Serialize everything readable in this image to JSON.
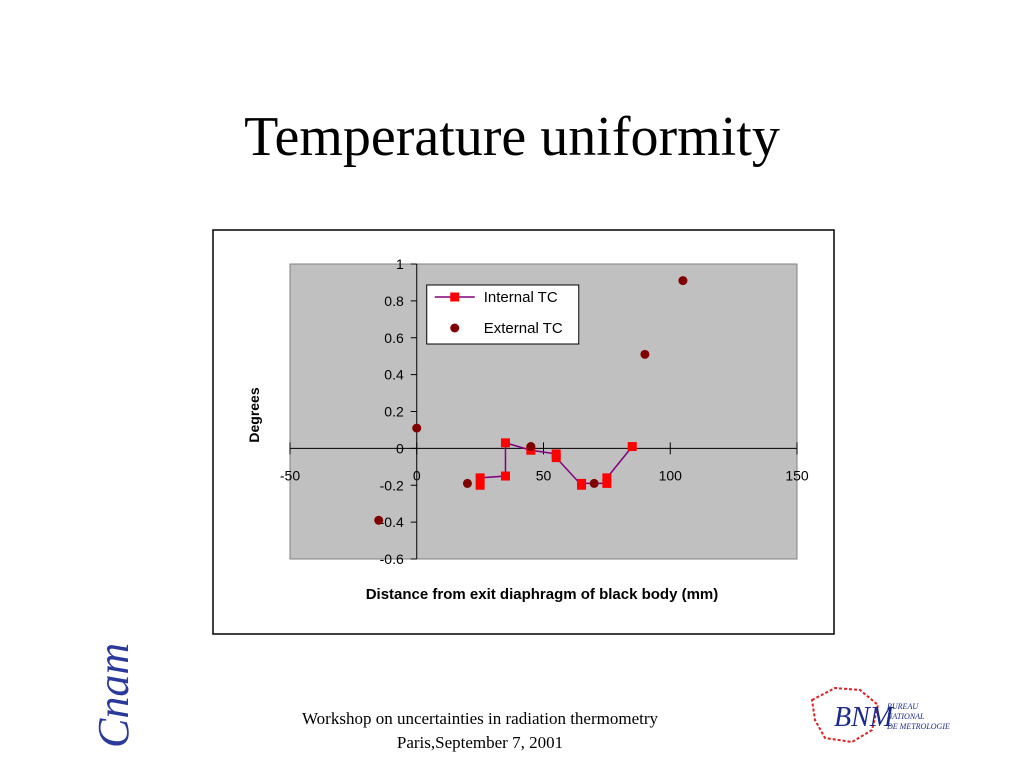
{
  "title": "Temperature uniformity",
  "chart_data": {
    "type": "scatter",
    "x_label": "Distance from exit diaphragm of black body (mm)",
    "y_label": "Degrees",
    "xlim": [
      -50,
      150
    ],
    "xticks": [
      -50,
      0,
      50,
      100,
      150
    ],
    "ylim": [
      -0.6,
      1
    ],
    "yticks": [
      -0.6,
      -0.4,
      -0.2,
      0,
      0.2,
      0.4,
      0.6,
      0.8,
      1
    ],
    "legend": "top-left",
    "series": [
      {
        "name": "Internal TC",
        "color": "#ff0000",
        "line_color": "#800080",
        "marker": "square",
        "x": [
          25,
          25,
          35,
          35,
          45,
          55,
          55,
          65,
          65,
          75,
          75,
          85
        ],
        "values": [
          -0.2,
          -0.16,
          -0.15,
          0.03,
          -0.01,
          -0.03,
          -0.05,
          -0.2,
          -0.19,
          -0.19,
          -0.16,
          0.01
        ]
      },
      {
        "name": "External TC",
        "color": "#800000",
        "marker": "circle",
        "x": [
          -15,
          0,
          20,
          45,
          70,
          90,
          105
        ],
        "values": [
          -0.39,
          0.11,
          -0.19,
          0.01,
          -0.19,
          0.51,
          0.91
        ]
      }
    ]
  },
  "footer": {
    "line1": "Workshop on uncertainties in radiation thermometry",
    "line2": "Paris,September 7, 2001"
  },
  "logos": {
    "left": "Cnam",
    "right": "BNM",
    "right_sub": [
      "BUREAU",
      "NATIONAL",
      "DE METROLOGIE"
    ]
  }
}
